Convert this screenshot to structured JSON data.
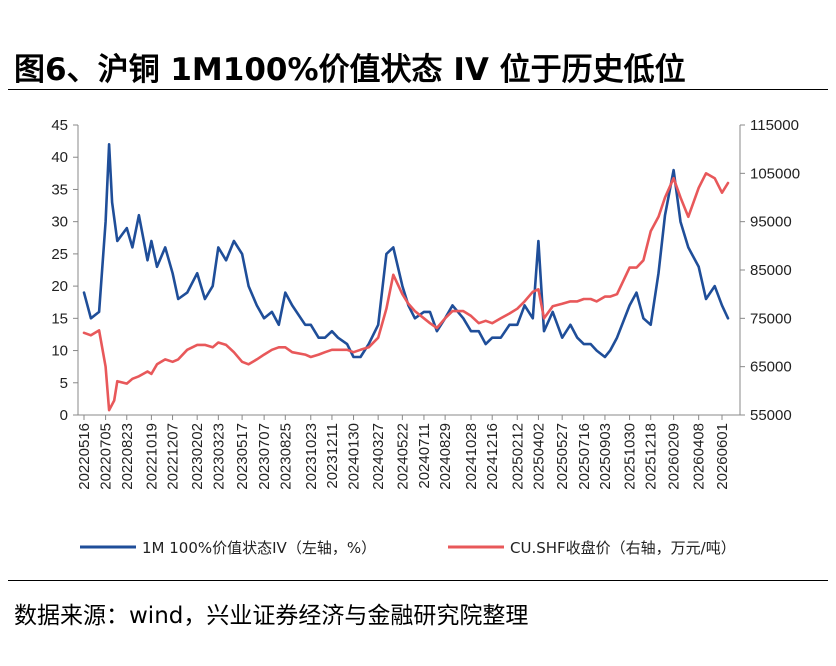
{
  "title": "图6、沪铜 1M100%价值状态 IV 位于历史低位",
  "source": "数据来源：wind，兴业证券经济与金融研究院整理",
  "chart_data": {
    "type": "line",
    "x_ticks": [
      "20220516",
      "20220705",
      "20220823",
      "20221019",
      "20221207",
      "20230202",
      "20230323",
      "20230517",
      "20230707",
      "20230825",
      "20231023",
      "20231211",
      "20240130",
      "20240327",
      "20240522",
      "20240711",
      "20240829",
      "20241028",
      "20241216",
      "20250212",
      "20250402",
      "20250527",
      "20250716",
      "20250903",
      "20251030",
      "20251218",
      "20260209",
      "20260408",
      "20260601"
    ],
    "y_left": {
      "label": "",
      "min": 0,
      "max": 45,
      "ticks": [
        "0",
        "5",
        "10",
        "15",
        "20",
        "25",
        "30",
        "35",
        "40",
        "45"
      ]
    },
    "y_right": {
      "label": "",
      "min": 55000,
      "max": 115000,
      "ticks": [
        "55000",
        "65000",
        "75000",
        "85000",
        "95000",
        "105000",
        "115000"
      ]
    },
    "grid": false,
    "legend_position": "bottom",
    "series": [
      {
        "name": "1M 100%价值状态IV（左轴，%）",
        "axis": "left",
        "color": "#1f4e99",
        "x": [
          "20220516",
          "20220601",
          "20220620",
          "20220705",
          "20220713",
          "20220720",
          "20220801",
          "20220823",
          "20220905",
          "20220920",
          "20221010",
          "20221019",
          "20221101",
          "20221120",
          "20221207",
          "20221220",
          "20230110",
          "20230202",
          "20230220",
          "20230310",
          "20230323",
          "20230410",
          "20230428",
          "20230517",
          "20230601",
          "20230620",
          "20230707",
          "20230725",
          "20230810",
          "20230825",
          "20230910",
          "20231010",
          "20231023",
          "20231110",
          "20231125",
          "20231211",
          "20231225",
          "20240115",
          "20240130",
          "20240215",
          "20240305",
          "20240327",
          "20240415",
          "20240501",
          "20240522",
          "20240605",
          "20240620",
          "20240711",
          "20240725",
          "20240810",
          "20240829",
          "20240915",
          "20241010",
          "20241028",
          "20241115",
          "20241201",
          "20241216",
          "20250105",
          "20250125",
          "20250212",
          "20250301",
          "20250320",
          "20250402",
          "20250415",
          "20250505",
          "20250527",
          "20250615",
          "20250701",
          "20250716",
          "20250801",
          "20250815",
          "20250903",
          "20250915",
          "20251001",
          "20251030",
          "20251115",
          "20251201",
          "20251218",
          "20260105",
          "20260120",
          "20260209",
          "20260225",
          "20260315",
          "20260408",
          "20260425",
          "20260515",
          "20260601",
          "20260615"
        ],
        "y": [
          19,
          15,
          16,
          30,
          42,
          33,
          27,
          29,
          26,
          31,
          24,
          27,
          23,
          26,
          22,
          18,
          19,
          22,
          18,
          20,
          26,
          24,
          27,
          25,
          20,
          17,
          15,
          16,
          14,
          19,
          17,
          14,
          14,
          12,
          12,
          13,
          12,
          11,
          9,
          9,
          11,
          14,
          25,
          26,
          20,
          17,
          15,
          16,
          16,
          13,
          15,
          17,
          15,
          13,
          13,
          11,
          12,
          12,
          14,
          14,
          17,
          15,
          27,
          13,
          16,
          12,
          14,
          12,
          11,
          11,
          10,
          9,
          10,
          12,
          17,
          19,
          15,
          14,
          22,
          31,
          38,
          30,
          26,
          23,
          18,
          20,
          17,
          15
        ]
      },
      {
        "name": "CU.SHF收盘价（右轴，万元/吨）",
        "axis": "right",
        "color": "#e8585a",
        "x": [
          "20220516",
          "20220601",
          "20220620",
          "20220705",
          "20220713",
          "20220725",
          "20220801",
          "20220823",
          "20220905",
          "20220920",
          "20221010",
          "20221019",
          "20221101",
          "20221120",
          "20221207",
          "20221220",
          "20230110",
          "20230202",
          "20230220",
          "20230310",
          "20230323",
          "20230410",
          "20230428",
          "20230517",
          "20230601",
          "20230620",
          "20230707",
          "20230725",
          "20230810",
          "20230825",
          "20230910",
          "20231010",
          "20231023",
          "20231110",
          "20231125",
          "20231211",
          "20231225",
          "20240115",
          "20240130",
          "20240215",
          "20240305",
          "20240327",
          "20240415",
          "20240501",
          "20240522",
          "20240605",
          "20240620",
          "20240711",
          "20240725",
          "20240810",
          "20240829",
          "20240915",
          "20241010",
          "20241028",
          "20241115",
          "20241201",
          "20241216",
          "20250105",
          "20250125",
          "20250212",
          "20250301",
          "20250320",
          "20250402",
          "20250415",
          "20250505",
          "20250527",
          "20250615",
          "20250701",
          "20250716",
          "20250801",
          "20250815",
          "20250903",
          "20250915",
          "20251001",
          "20251030",
          "20251115",
          "20251201",
          "20251218",
          "20260105",
          "20260120",
          "20260209",
          "20260225",
          "20260315",
          "20260408",
          "20260425",
          "20260515",
          "20260601",
          "20260615"
        ],
        "y": [
          72000,
          71500,
          72500,
          65000,
          56000,
          58000,
          62000,
          61500,
          62500,
          63000,
          64000,
          63500,
          65500,
          66500,
          66000,
          66500,
          68500,
          69500,
          69500,
          69000,
          70000,
          69500,
          68000,
          66000,
          65500,
          66500,
          67500,
          68500,
          69000,
          69000,
          68000,
          67500,
          67000,
          67500,
          68000,
          68500,
          68500,
          68500,
          68000,
          68500,
          69000,
          71000,
          77000,
          84000,
          80000,
          78000,
          76500,
          75000,
          74000,
          73000,
          75000,
          76500,
          76500,
          75500,
          74000,
          74500,
          74000,
          75000,
          76000,
          77000,
          78500,
          80500,
          81000,
          75000,
          77500,
          78000,
          78500,
          78500,
          79000,
          79000,
          78500,
          79500,
          79500,
          80000,
          85500,
          85500,
          87000,
          93000,
          96000,
          100000,
          104000,
          100000,
          96000,
          102000,
          105000,
          104000,
          101000,
          103000
        ]
      }
    ]
  }
}
